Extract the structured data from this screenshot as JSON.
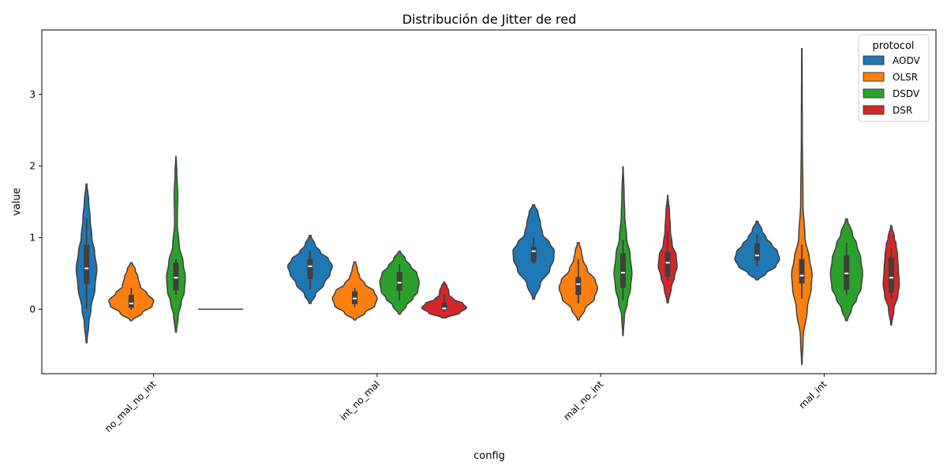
{
  "chart_data": {
    "type": "violin",
    "title": "Distribución de Jitter de red",
    "xlabel": "config",
    "ylabel": "value",
    "categories": [
      "no_mal_no_int",
      "int_no_mal",
      "mal_no_int",
      "mal_int"
    ],
    "ylim": [
      -0.9,
      3.9
    ],
    "yticks": [
      0,
      1,
      2,
      3
    ],
    "grid": false,
    "legend": {
      "title": "protocol",
      "placement": "top-right"
    },
    "series": [
      {
        "name": "AODV",
        "color": "#1f77b4",
        "groups": [
          {
            "vmin": -0.47,
            "vmax": 1.75,
            "q1": 0.35,
            "median": 0.57,
            "q3": 0.9,
            "wlo": 0.0,
            "whi": 1.27,
            "profile": [
              [
                -0.47,
                0.02
              ],
              [
                -0.2,
                0.1
              ],
              [
                0.0,
                0.2
              ],
              [
                0.3,
                0.38
              ],
              [
                0.57,
                0.46
              ],
              [
                0.8,
                0.36
              ],
              [
                1.0,
                0.24
              ],
              [
                1.27,
                0.16
              ],
              [
                1.5,
                0.1
              ],
              [
                1.75,
                0.02
              ]
            ]
          },
          {
            "vmin": 0.08,
            "vmax": 1.03,
            "q1": 0.42,
            "median": 0.6,
            "q3": 0.7,
            "wlo": 0.28,
            "whi": 0.82,
            "profile": [
              [
                0.08,
                0.04
              ],
              [
                0.2,
                0.24
              ],
              [
                0.35,
                0.62
              ],
              [
                0.5,
                0.9
              ],
              [
                0.6,
                1.0
              ],
              [
                0.7,
                0.82
              ],
              [
                0.8,
                0.46
              ],
              [
                0.9,
                0.22
              ],
              [
                1.03,
                0.04
              ]
            ]
          },
          {
            "vmin": 0.14,
            "vmax": 1.46,
            "q1": 0.66,
            "median": 0.81,
            "q3": 0.87,
            "wlo": 0.64,
            "whi": 1.0,
            "profile": [
              [
                0.14,
                0.04
              ],
              [
                0.35,
                0.3
              ],
              [
                0.55,
                0.72
              ],
              [
                0.7,
                0.9
              ],
              [
                0.82,
                0.92
              ],
              [
                0.92,
                0.72
              ],
              [
                1.05,
                0.4
              ],
              [
                1.2,
                0.3
              ],
              [
                1.35,
                0.2
              ],
              [
                1.46,
                0.04
              ]
            ]
          },
          {
            "vmin": 0.41,
            "vmax": 1.23,
            "q1": 0.68,
            "median": 0.75,
            "q3": 0.92,
            "wlo": 0.6,
            "whi": 1.05,
            "profile": [
              [
                0.41,
                0.05
              ],
              [
                0.5,
                0.4
              ],
              [
                0.6,
                0.84
              ],
              [
                0.7,
                1.0
              ],
              [
                0.8,
                0.92
              ],
              [
                0.9,
                0.66
              ],
              [
                1.0,
                0.4
              ],
              [
                1.1,
                0.22
              ],
              [
                1.23,
                0.04
              ]
            ]
          }
        ]
      },
      {
        "name": "OLSR",
        "color": "#ff7f0e",
        "groups": [
          {
            "vmin": -0.16,
            "vmax": 0.65,
            "q1": 0.02,
            "median": 0.08,
            "q3": 0.2,
            "wlo": -0.01,
            "whi": 0.3,
            "profile": [
              [
                -0.16,
                0.04
              ],
              [
                -0.05,
                0.5
              ],
              [
                0.05,
                0.94
              ],
              [
                0.12,
                1.0
              ],
              [
                0.22,
                0.7
              ],
              [
                0.32,
                0.4
              ],
              [
                0.45,
                0.3
              ],
              [
                0.55,
                0.18
              ],
              [
                0.65,
                0.04
              ]
            ]
          },
          {
            "vmin": -0.15,
            "vmax": 0.66,
            "q1": 0.07,
            "median": 0.15,
            "q3": 0.25,
            "wlo": 0.03,
            "whi": 0.3,
            "profile": [
              [
                -0.15,
                0.04
              ],
              [
                -0.05,
                0.46
              ],
              [
                0.05,
                0.9
              ],
              [
                0.15,
                1.0
              ],
              [
                0.25,
                0.86
              ],
              [
                0.35,
                0.46
              ],
              [
                0.45,
                0.22
              ],
              [
                0.55,
                0.12
              ],
              [
                0.66,
                0.04
              ]
            ]
          },
          {
            "vmin": -0.15,
            "vmax": 0.93,
            "q1": 0.2,
            "median": 0.35,
            "q3": 0.45,
            "wlo": 0.08,
            "whi": 0.7,
            "profile": [
              [
                -0.15,
                0.04
              ],
              [
                0.0,
                0.3
              ],
              [
                0.15,
                0.72
              ],
              [
                0.3,
                0.86
              ],
              [
                0.4,
                0.76
              ],
              [
                0.55,
                0.4
              ],
              [
                0.7,
                0.2
              ],
              [
                0.8,
                0.14
              ],
              [
                0.93,
                0.04
              ]
            ]
          },
          {
            "vmin": -0.77,
            "vmax": 3.64,
            "q1": 0.36,
            "median": 0.47,
            "q3": 0.7,
            "wlo": 0.15,
            "whi": 0.9,
            "profile": [
              [
                -0.77,
                0.01
              ],
              [
                -0.4,
                0.06
              ],
              [
                0.0,
                0.24
              ],
              [
                0.3,
                0.42
              ],
              [
                0.5,
                0.46
              ],
              [
                0.7,
                0.34
              ],
              [
                1.0,
                0.14
              ],
              [
                1.5,
                0.05
              ],
              [
                2.5,
                0.02
              ],
              [
                3.64,
                0.01
              ]
            ]
          }
        ]
      },
      {
        "name": "DSDV",
        "color": "#2ca02c",
        "groups": [
          {
            "vmin": -0.32,
            "vmax": 2.13,
            "q1": 0.26,
            "median": 0.44,
            "q3": 0.65,
            "wlo": 0.2,
            "whi": 0.7,
            "profile": [
              [
                -0.32,
                0.02
              ],
              [
                -0.1,
                0.1
              ],
              [
                0.1,
                0.24
              ],
              [
                0.25,
                0.38
              ],
              [
                0.45,
                0.42
              ],
              [
                0.65,
                0.32
              ],
              [
                0.9,
                0.14
              ],
              [
                1.2,
                0.06
              ],
              [
                1.6,
                0.08
              ],
              [
                1.9,
                0.04
              ],
              [
                2.13,
                0.01
              ]
            ]
          },
          {
            "vmin": -0.07,
            "vmax": 0.81,
            "q1": 0.26,
            "median": 0.37,
            "q3": 0.52,
            "wlo": 0.12,
            "whi": 0.63,
            "profile": [
              [
                -0.07,
                0.04
              ],
              [
                0.05,
                0.3
              ],
              [
                0.15,
                0.6
              ],
              [
                0.25,
                0.82
              ],
              [
                0.38,
                0.88
              ],
              [
                0.5,
                0.78
              ],
              [
                0.6,
                0.5
              ],
              [
                0.7,
                0.26
              ],
              [
                0.81,
                0.04
              ]
            ]
          },
          {
            "vmin": -0.37,
            "vmax": 1.99,
            "q1": 0.3,
            "median": 0.51,
            "q3": 0.78,
            "wlo": 0.12,
            "whi": 0.97,
            "profile": [
              [
                -0.37,
                0.01
              ],
              [
                -0.1,
                0.06
              ],
              [
                0.1,
                0.2
              ],
              [
                0.3,
                0.34
              ],
              [
                0.5,
                0.4
              ],
              [
                0.75,
                0.32
              ],
              [
                1.0,
                0.16
              ],
              [
                1.3,
                0.08
              ],
              [
                1.6,
                0.05
              ],
              [
                1.99,
                0.01
              ]
            ]
          },
          {
            "vmin": -0.16,
            "vmax": 1.26,
            "q1": 0.27,
            "median": 0.5,
            "q3": 0.75,
            "wlo": 0.2,
            "whi": 0.93,
            "profile": [
              [
                -0.16,
                0.04
              ],
              [
                0.0,
                0.22
              ],
              [
                0.15,
                0.46
              ],
              [
                0.3,
                0.66
              ],
              [
                0.5,
                0.72
              ],
              [
                0.7,
                0.64
              ],
              [
                0.9,
                0.46
              ],
              [
                1.05,
                0.26
              ],
              [
                1.26,
                0.04
              ]
            ]
          }
        ]
      },
      {
        "name": "DSR",
        "color": "#d62728",
        "groups": [
          {
            "vmin": 0.0,
            "vmax": 0.0,
            "q1": 0.0,
            "median": 0.0,
            "q3": 0.0,
            "wlo": 0.0,
            "whi": 0.0,
            "profile": [
              [
                0.0,
                1.0
              ],
              [
                0.0,
                1.0
              ]
            ]
          },
          {
            "vmin": -0.12,
            "vmax": 0.38,
            "q1": -0.01,
            "median": 0.01,
            "q3": 0.09,
            "wlo": -0.03,
            "whi": 0.21,
            "profile": [
              [
                -0.12,
                0.1
              ],
              [
                -0.05,
                0.7
              ],
              [
                0.02,
                1.0
              ],
              [
                0.08,
                0.84
              ],
              [
                0.14,
                0.42
              ],
              [
                0.2,
                0.22
              ],
              [
                0.26,
                0.2
              ],
              [
                0.32,
                0.12
              ],
              [
                0.38,
                0.02
              ]
            ]
          },
          {
            "vmin": 0.09,
            "vmax": 1.59,
            "q1": 0.45,
            "median": 0.65,
            "q3": 0.8,
            "wlo": 0.4,
            "whi": 1.1,
            "profile": [
              [
                0.09,
                0.03
              ],
              [
                0.3,
                0.16
              ],
              [
                0.45,
                0.3
              ],
              [
                0.6,
                0.42
              ],
              [
                0.75,
                0.38
              ],
              [
                0.9,
                0.2
              ],
              [
                1.1,
                0.12
              ],
              [
                1.35,
                0.08
              ],
              [
                1.59,
                0.01
              ]
            ]
          },
          {
            "vmin": -0.22,
            "vmax": 1.17,
            "q1": 0.23,
            "median": 0.44,
            "q3": 0.72,
            "wlo": 0.15,
            "whi": 0.85,
            "profile": [
              [
                -0.22,
                0.02
              ],
              [
                0.0,
                0.12
              ],
              [
                0.2,
                0.3
              ],
              [
                0.35,
                0.36
              ],
              [
                0.55,
                0.32
              ],
              [
                0.75,
                0.28
              ],
              [
                0.9,
                0.22
              ],
              [
                1.0,
                0.14
              ],
              [
                1.17,
                0.02
              ]
            ]
          }
        ]
      }
    ]
  }
}
